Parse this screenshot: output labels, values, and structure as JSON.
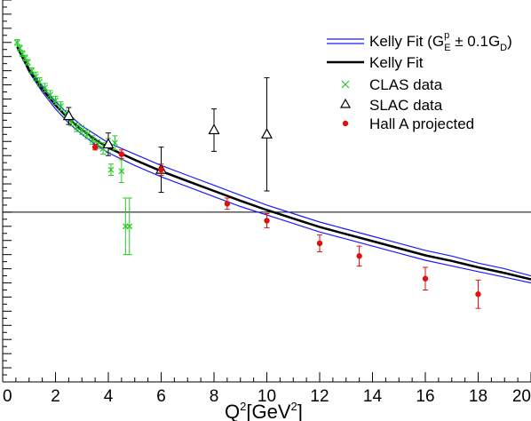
{
  "chart_data": {
    "type": "scatter",
    "xlabel": "Q²[GeV²]",
    "xlim": [
      0,
      20
    ],
    "ylim": [
      -1.2,
      1.5
    ],
    "zero_line": true,
    "grid": false,
    "legend_position": "top-right",
    "x_ticks": [
      "0",
      "2",
      "4",
      "6",
      "8",
      "10",
      "12",
      "14",
      "16",
      "18",
      "20"
    ],
    "series": [
      {
        "name": "Kelly Fit (G_E^p ± 0.1G_D)",
        "kind": "band",
        "color": "#1a1aff",
        "upper": [
          [
            0.55,
            1.18
          ],
          [
            1,
            1.02
          ],
          [
            1.5,
            0.89
          ],
          [
            2,
            0.78
          ],
          [
            2.5,
            0.69
          ],
          [
            3,
            0.61
          ],
          [
            3.5,
            0.55
          ],
          [
            4,
            0.49
          ],
          [
            5,
            0.41
          ],
          [
            6,
            0.33
          ],
          [
            7,
            0.26
          ],
          [
            8,
            0.19
          ],
          [
            9,
            0.12
          ],
          [
            10,
            0.05
          ],
          [
            11,
            -0.01
          ],
          [
            12,
            -0.07
          ],
          [
            13,
            -0.12
          ],
          [
            14,
            -0.17
          ],
          [
            15,
            -0.22
          ],
          [
            16,
            -0.27
          ],
          [
            17,
            -0.31
          ],
          [
            18,
            -0.36
          ],
          [
            19,
            -0.4
          ],
          [
            20,
            -0.45
          ]
        ],
        "lower": [
          [
            0.55,
            1.16
          ],
          [
            1,
            0.99
          ],
          [
            1.5,
            0.85
          ],
          [
            2,
            0.73
          ],
          [
            2.5,
            0.63
          ],
          [
            3,
            0.55
          ],
          [
            3.5,
            0.48
          ],
          [
            4,
            0.42
          ],
          [
            5,
            0.33
          ],
          [
            6,
            0.25
          ],
          [
            7,
            0.18
          ],
          [
            8,
            0.11
          ],
          [
            9,
            0.04
          ],
          [
            10,
            -0.02
          ],
          [
            11,
            -0.08
          ],
          [
            12,
            -0.14
          ],
          [
            13,
            -0.19
          ],
          [
            14,
            -0.24
          ],
          [
            15,
            -0.29
          ],
          [
            16,
            -0.34
          ],
          [
            17,
            -0.38
          ],
          [
            18,
            -0.42
          ],
          [
            19,
            -0.46
          ],
          [
            20,
            -0.5
          ]
        ]
      },
      {
        "name": "Kelly Fit",
        "kind": "line",
        "color": "#000000",
        "points": [
          [
            0.55,
            1.17
          ],
          [
            1,
            1.005
          ],
          [
            1.5,
            0.87
          ],
          [
            2,
            0.755
          ],
          [
            2.5,
            0.66
          ],
          [
            3,
            0.58
          ],
          [
            3.5,
            0.515
          ],
          [
            4,
            0.455
          ],
          [
            5,
            0.37
          ],
          [
            6,
            0.29
          ],
          [
            7,
            0.22
          ],
          [
            8,
            0.15
          ],
          [
            9,
            0.08
          ],
          [
            10,
            0.015
          ],
          [
            11,
            -0.045
          ],
          [
            12,
            -0.105
          ],
          [
            13,
            -0.155
          ],
          [
            14,
            -0.205
          ],
          [
            15,
            -0.255
          ],
          [
            16,
            -0.305
          ],
          [
            17,
            -0.345
          ],
          [
            18,
            -0.39
          ],
          [
            19,
            -0.43
          ],
          [
            20,
            -0.475
          ]
        ]
      },
      {
        "name": "CLAS data",
        "kind": "points",
        "marker": "x",
        "color": "#22cc22",
        "points": [
          {
            "x": 0.55,
            "y": 1.2,
            "err": 0.02
          },
          {
            "x": 0.65,
            "y": 1.16,
            "err": 0.02
          },
          {
            "x": 0.75,
            "y": 1.12,
            "err": 0.02
          },
          {
            "x": 0.85,
            "y": 1.09,
            "err": 0.02
          },
          {
            "x": 0.95,
            "y": 1.06,
            "err": 0.02
          },
          {
            "x": 1.1,
            "y": 1.0,
            "err": 0.02
          },
          {
            "x": 1.25,
            "y": 0.96,
            "err": 0.03
          },
          {
            "x": 1.4,
            "y": 0.92,
            "err": 0.03
          },
          {
            "x": 1.6,
            "y": 0.88,
            "err": 0.03
          },
          {
            "x": 1.8,
            "y": 0.83,
            "err": 0.03
          },
          {
            "x": 2.0,
            "y": 0.79,
            "err": 0.03
          },
          {
            "x": 2.2,
            "y": 0.75,
            "err": 0.03
          },
          {
            "x": 2.4,
            "y": 0.69,
            "err": 0.03
          },
          {
            "x": 2.6,
            "y": 0.64,
            "err": 0.03
          },
          {
            "x": 2.8,
            "y": 0.6,
            "err": 0.03
          },
          {
            "x": 3.0,
            "y": 0.58,
            "err": 0.03
          },
          {
            "x": 3.2,
            "y": 0.55,
            "err": 0.03
          },
          {
            "x": 3.4,
            "y": 0.51,
            "err": 0.03
          },
          {
            "x": 3.6,
            "y": 0.48,
            "err": 0.03
          },
          {
            "x": 3.8,
            "y": 0.45,
            "err": 0.04
          },
          {
            "x": 4.0,
            "y": 0.47,
            "err": 0.05
          },
          {
            "x": 4.1,
            "y": 0.3,
            "err": 0.04
          },
          {
            "x": 4.25,
            "y": 0.49,
            "err": 0.05
          },
          {
            "x": 4.5,
            "y": 0.29,
            "err": 0.08
          },
          {
            "x": 4.65,
            "y": -0.1,
            "err": 0.2
          },
          {
            "x": 4.8,
            "y": -0.1,
            "err": 0.2
          }
        ]
      },
      {
        "name": "SLAC data",
        "kind": "points",
        "marker": "triangle",
        "color": "#000000",
        "points": [
          {
            "x": 2.5,
            "y": 0.68,
            "err": 0.06
          },
          {
            "x": 4.0,
            "y": 0.48,
            "err": 0.08
          },
          {
            "x": 6.0,
            "y": 0.3,
            "err": 0.16
          },
          {
            "x": 8.0,
            "y": 0.58,
            "err": 0.15
          },
          {
            "x": 10.0,
            "y": 0.55,
            "err": 0.4
          }
        ]
      },
      {
        "name": "Hall A projected",
        "kind": "points",
        "marker": "dot",
        "color": "#dd1111",
        "points": [
          {
            "x": 3.5,
            "y": 0.46,
            "err": 0.02
          },
          {
            "x": 4.5,
            "y": 0.41,
            "err": 0.03
          },
          {
            "x": 6.0,
            "y": 0.3,
            "err": 0.04
          },
          {
            "x": 8.5,
            "y": 0.06,
            "err": 0.04
          },
          {
            "x": 10.0,
            "y": -0.06,
            "err": 0.05
          },
          {
            "x": 12.0,
            "y": -0.22,
            "err": 0.06
          },
          {
            "x": 13.5,
            "y": -0.31,
            "err": 0.07
          },
          {
            "x": 16.0,
            "y": -0.47,
            "err": 0.08
          },
          {
            "x": 18.0,
            "y": -0.58,
            "err": 0.1
          }
        ]
      }
    ]
  },
  "legend": {
    "band_label": "Kelly Fit (G",
    "band_sup": "p",
    "band_sub_e": "E",
    "band_mid": " ± 0.1G",
    "band_sub_d": "D",
    "band_end": ")",
    "fit_label": "Kelly Fit",
    "clas_label": "CLAS data",
    "slac_label": "SLAC data",
    "halla_label": "Hall A projected"
  },
  "axis": {
    "xlabel_main": "Q",
    "xlabel_sup1": "2",
    "xlabel_unit": "[GeV",
    "xlabel_sup2": "2",
    "xlabel_end": "]"
  }
}
